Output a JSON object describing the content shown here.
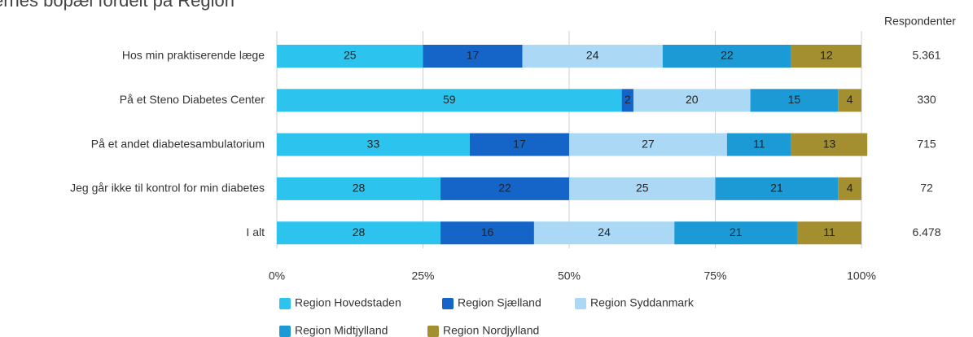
{
  "chart_data": {
    "type": "stacked-barh",
    "title": "ernes bopæl fordelt på Region",
    "categories": [
      "Hos min praktiserende læge",
      "På et Steno Diabetes Center",
      "På et andet diabetesambulatorium",
      "Jeg går ikke til kontrol for min diabetes",
      "I alt"
    ],
    "series": [
      {
        "name": "Region Hovedstaden",
        "color": "#2cc4ef",
        "values": [
          25,
          59,
          33,
          28,
          28
        ]
      },
      {
        "name": "Region Sjælland",
        "color": "#1565c8",
        "values": [
          17,
          2,
          17,
          22,
          16
        ]
      },
      {
        "name": "Region Syddanmark",
        "color": "#aad8f5",
        "values": [
          24,
          20,
          27,
          25,
          24
        ]
      },
      {
        "name": "Region Midtjylland",
        "color": "#1b9ad6",
        "values": [
          22,
          15,
          11,
          21,
          21
        ]
      },
      {
        "name": "Region Nordjylland",
        "color": "#a38e30",
        "values": [
          12,
          4,
          13,
          4,
          11
        ]
      }
    ],
    "xlim": [
      0,
      100
    ],
    "xticks": [
      {
        "value": 0,
        "label": "0%"
      },
      {
        "value": 25,
        "label": "25%"
      },
      {
        "value": 50,
        "label": "50%"
      },
      {
        "value": 75,
        "label": "75%"
      },
      {
        "value": 100,
        "label": "100%"
      }
    ],
    "grid": true,
    "respondents_header": "Respondenter",
    "respondents": [
      "5.361",
      "330",
      "715",
      "72",
      "6.478"
    ]
  }
}
